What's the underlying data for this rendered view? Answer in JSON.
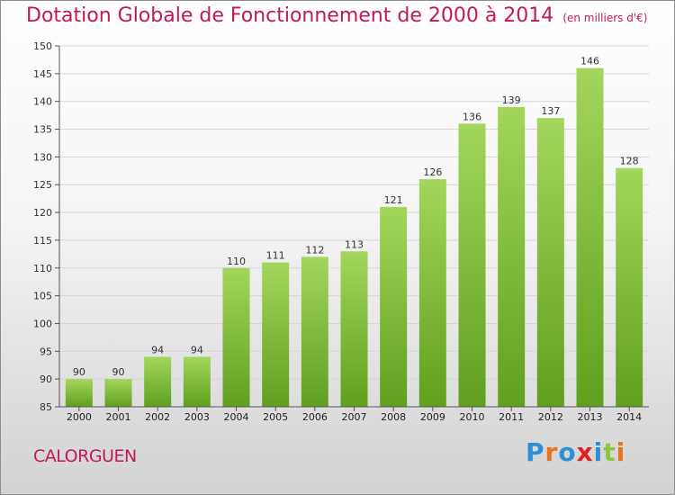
{
  "title": "Dotation Globale de Fonctionnement de 2000 à 2014",
  "subtitle": "(en milliers d'€)",
  "commune": "CALORGUEN",
  "logo_text": "Proxiti",
  "colors": {
    "title": "#c2185b",
    "bar_top": "#a3d65c",
    "bar_bottom": "#5fa01e",
    "logo": [
      "#2e8fd6",
      "#e8731a",
      "#2e8fd6",
      "#e02020",
      "#2e8fd6",
      "#8cc63f",
      "#e8731a"
    ]
  },
  "chart_data": {
    "type": "bar",
    "title": "Dotation Globale de Fonctionnement de 2000 à 2014",
    "subtitle": "(en milliers d'€)",
    "categories": [
      "2000",
      "2001",
      "2002",
      "2003",
      "2004",
      "2005",
      "2006",
      "2007",
      "2008",
      "2009",
      "2010",
      "2011",
      "2012",
      "2013",
      "2014"
    ],
    "values": [
      90,
      90,
      94,
      94,
      110,
      111,
      112,
      113,
      121,
      126,
      136,
      139,
      137,
      146,
      128
    ],
    "ylim": [
      85,
      150
    ],
    "yticks": [
      85,
      90,
      95,
      100,
      105,
      110,
      115,
      120,
      125,
      130,
      135,
      140,
      145,
      150
    ],
    "grid": true,
    "xlabel": "",
    "ylabel": ""
  }
}
